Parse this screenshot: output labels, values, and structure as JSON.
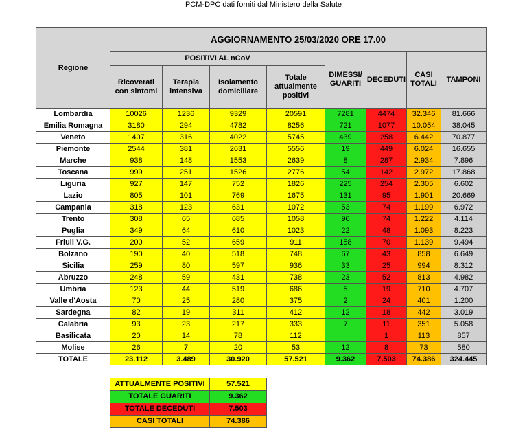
{
  "header": {
    "title": "PCM-DPC dati forniti dal Ministero della Salute"
  },
  "table": {
    "region_header": "Regione",
    "update_title": "AGGIORNAMENTO 25/03/2020 ORE 17.00",
    "group_header": "POSITIVI AL nCoV",
    "columns": [
      "Ricoverati con sintomi",
      "Terapia intensiva",
      "Isolamento domiciliare",
      "Totale attualmente positivi",
      "DIMESSI/ GUARITI",
      "DECEDUTI",
      "CASI TOTALI",
      "TAMPONI"
    ],
    "rows": [
      [
        "Lombardia",
        "10026",
        "1236",
        "9329",
        "20591",
        "7281",
        "4474",
        "32.346",
        "81.666"
      ],
      [
        "Emilia Romagna",
        "3180",
        "294",
        "4782",
        "8256",
        "721",
        "1077",
        "10.054",
        "38.045"
      ],
      [
        "Veneto",
        "1407",
        "316",
        "4022",
        "5745",
        "439",
        "258",
        "6.442",
        "70.877"
      ],
      [
        "Piemonte",
        "2544",
        "381",
        "2631",
        "5556",
        "19",
        "449",
        "6.024",
        "16.655"
      ],
      [
        "Marche",
        "938",
        "148",
        "1553",
        "2639",
        "8",
        "287",
        "2.934",
        "7.896"
      ],
      [
        "Toscana",
        "999",
        "251",
        "1526",
        "2776",
        "54",
        "142",
        "2.972",
        "17.868"
      ],
      [
        "Liguria",
        "927",
        "147",
        "752",
        "1826",
        "225",
        "254",
        "2.305",
        "6.602"
      ],
      [
        "Lazio",
        "805",
        "101",
        "769",
        "1675",
        "131",
        "95",
        "1.901",
        "20.669"
      ],
      [
        "Campania",
        "318",
        "123",
        "631",
        "1072",
        "53",
        "74",
        "1.199",
        "6.972"
      ],
      [
        "Trento",
        "308",
        "65",
        "685",
        "1058",
        "90",
        "74",
        "1.222",
        "4.114"
      ],
      [
        "Puglia",
        "349",
        "64",
        "610",
        "1023",
        "22",
        "48",
        "1.093",
        "8.223"
      ],
      [
        "Friuli V.G.",
        "200",
        "52",
        "659",
        "911",
        "158",
        "70",
        "1.139",
        "9.494"
      ],
      [
        "Bolzano",
        "190",
        "40",
        "518",
        "748",
        "67",
        "43",
        "858",
        "6.649"
      ],
      [
        "Sicilia",
        "259",
        "80",
        "597",
        "936",
        "33",
        "25",
        "994",
        "8.312"
      ],
      [
        "Abruzzo",
        "248",
        "59",
        "431",
        "738",
        "23",
        "52",
        "813",
        "4.982"
      ],
      [
        "Umbria",
        "123",
        "44",
        "519",
        "686",
        "5",
        "19",
        "710",
        "4.707"
      ],
      [
        "Valle d'Aosta",
        "70",
        "25",
        "280",
        "375",
        "2",
        "24",
        "401",
        "1.200"
      ],
      [
        "Sardegna",
        "82",
        "19",
        "311",
        "412",
        "12",
        "18",
        "442",
        "3.019"
      ],
      [
        "Calabria",
        "93",
        "23",
        "217",
        "333",
        "7",
        "11",
        "351",
        "5.058"
      ],
      [
        "Basilicata",
        "20",
        "14",
        "78",
        "112",
        null,
        "1",
        "113",
        "857"
      ],
      [
        "Molise",
        "26",
        "7",
        "20",
        "53",
        "12",
        "8",
        "73",
        "580"
      ]
    ],
    "total": [
      "TOTALE",
      "23.112",
      "3.489",
      "30.920",
      "57.521",
      "9.362",
      "7.503",
      "74.386",
      "324.445"
    ]
  },
  "summary": {
    "rows": [
      [
        "ATTUALMENTE POSITIVI",
        "57.521"
      ],
      [
        "TOTALE GUARITI",
        "9.362"
      ],
      [
        "TOTALE DECEDUTI",
        "7.503"
      ],
      [
        "CASI TOTALI",
        "74.386"
      ]
    ]
  }
}
